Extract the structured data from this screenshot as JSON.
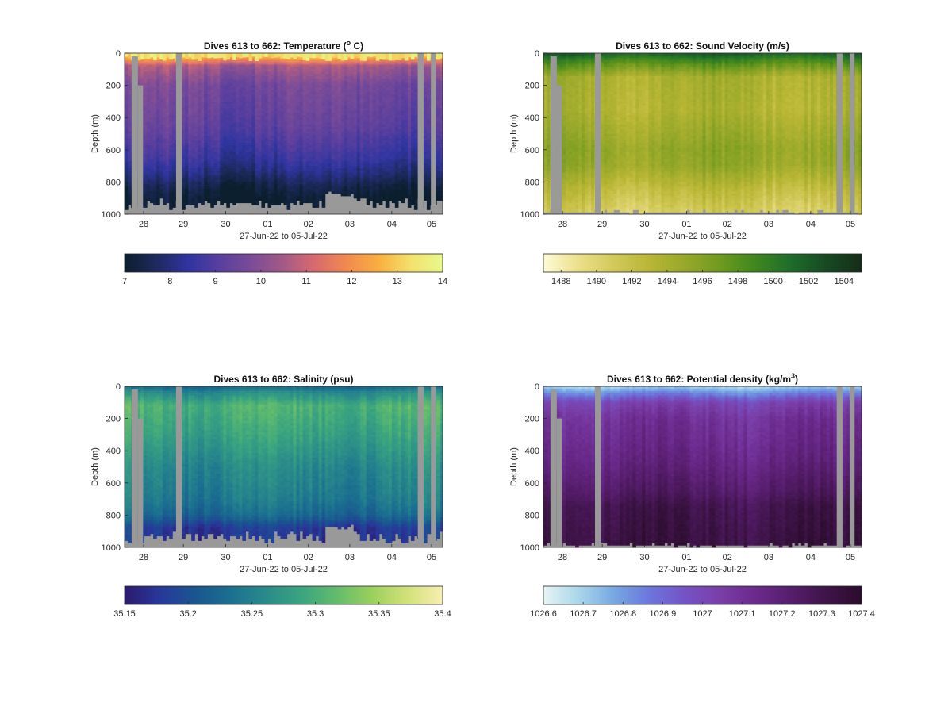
{
  "chart_data": [
    {
      "type": "heatmap",
      "title": "Dives 613 to 662: Temperature (",
      "title_sup": "o",
      "title_suffix": " C)",
      "ylabel": "Depth (m)",
      "xlabel": "27-Jun-22 to 05-Jul-22",
      "x_ticks": [
        "28",
        "29",
        "30",
        "01",
        "02",
        "03",
        "04",
        "05"
      ],
      "y_ticks": [
        "0",
        "200",
        "400",
        "600",
        "800",
        "1000"
      ],
      "ylim": [
        0,
        1000
      ],
      "y_reversed": true,
      "colorbar": {
        "ticks": [
          "7",
          "8",
          "9",
          "10",
          "11",
          "12",
          "13",
          "14"
        ],
        "range": [
          7,
          14
        ],
        "colors": [
          "#0b1f2e",
          "#1d2a5e",
          "#2f35a0",
          "#5a3f9e",
          "#7b4c98",
          "#a45a86",
          "#d86b6e",
          "#f18a4f",
          "#f9b03e",
          "#f3e16c",
          "#e8f98a"
        ]
      },
      "profile": [
        [
          0,
          0.92
        ],
        [
          30,
          0.78
        ],
        [
          80,
          0.5
        ],
        [
          200,
          0.38
        ],
        [
          450,
          0.32
        ],
        [
          650,
          0.22
        ],
        [
          750,
          0.14
        ],
        [
          830,
          0.05
        ],
        [
          900,
          0.0
        ],
        [
          1000,
          0.0
        ]
      ],
      "surface_band": true
    },
    {
      "type": "heatmap",
      "title": "Dives 613 to 662: Sound Velocity (m/s)",
      "ylabel": "Depth (m)",
      "xlabel": "27-Jun-22 to 05-Jul-22",
      "x_ticks": [
        "28",
        "29",
        "30",
        "01",
        "02",
        "03",
        "04",
        "05"
      ],
      "y_ticks": [
        "0",
        "200",
        "400",
        "600",
        "800",
        "1000"
      ],
      "ylim": [
        0,
        1000
      ],
      "y_reversed": true,
      "colorbar": {
        "ticks": [
          "1488",
          "1490",
          "1492",
          "1494",
          "1496",
          "1498",
          "1500",
          "1502",
          "1504"
        ],
        "range": [
          1487,
          1505
        ],
        "colors": [
          "#fdfbd6",
          "#ecdf8a",
          "#d2c95a",
          "#b9b634",
          "#97a82a",
          "#6f9a1e",
          "#3f871f",
          "#1e6c2c",
          "#184a22",
          "#152d18"
        ]
      },
      "profile": [
        [
          0,
          0.82
        ],
        [
          60,
          0.62
        ],
        [
          150,
          0.38
        ],
        [
          350,
          0.36
        ],
        [
          600,
          0.46
        ],
        [
          700,
          0.44
        ],
        [
          850,
          0.3
        ],
        [
          1000,
          0.2
        ]
      ],
      "surface_band": false
    },
    {
      "type": "heatmap",
      "title": "Dives 613 to 662: Salinity (psu)",
      "ylabel": "Depth (m)",
      "xlabel": "27-Jun-22 to 05-Jul-22",
      "x_ticks": [
        "28",
        "29",
        "30",
        "01",
        "02",
        "03",
        "04",
        "05"
      ],
      "y_ticks": [
        "0",
        "200",
        "400",
        "600",
        "800",
        "1000"
      ],
      "ylim": [
        0,
        1000
      ],
      "y_reversed": true,
      "colorbar": {
        "ticks": [
          "35.15",
          "35.2",
          "35.25",
          "35.3",
          "35.35",
          "35.4"
        ],
        "range": [
          35.15,
          35.4
        ],
        "colors": [
          "#2c1a6e",
          "#28389a",
          "#19568f",
          "#1b7090",
          "#2a8b8a",
          "#3aa480",
          "#62bc6c",
          "#9ad05c",
          "#d2e17a",
          "#f7efb0"
        ]
      },
      "profile": [
        [
          0,
          0.3
        ],
        [
          40,
          0.45
        ],
        [
          120,
          0.62
        ],
        [
          300,
          0.55
        ],
        [
          500,
          0.44
        ],
        [
          700,
          0.38
        ],
        [
          800,
          0.3
        ],
        [
          880,
          0.12
        ],
        [
          1000,
          0.1
        ]
      ],
      "surface_band": false
    },
    {
      "type": "heatmap",
      "title": "Dives 613 to 662: Potential density (kg/m",
      "title_sup": "3",
      "title_suffix": ")",
      "ylabel": "Depth (m)",
      "xlabel": "27-Jun-22 to 05-Jul-22",
      "x_ticks": [
        "28",
        "29",
        "30",
        "01",
        "02",
        "03",
        "04",
        "05"
      ],
      "y_ticks": [
        "0",
        "200",
        "400",
        "600",
        "800",
        "1000"
      ],
      "ylim": [
        0,
        1000
      ],
      "y_reversed": true,
      "colorbar": {
        "ticks": [
          "1026.6",
          "1026.7",
          "1026.8",
          "1026.9",
          "1027",
          "1027.1",
          "1027.2",
          "1027.3",
          "1027.4"
        ],
        "range": [
          1026.6,
          1027.4
        ],
        "colors": [
          "#e6f4f4",
          "#a9d6ea",
          "#76a8e2",
          "#6c76dc",
          "#7553c4",
          "#7a3ea8",
          "#6a2a8c",
          "#561d6c",
          "#3f1449",
          "#2a0c2c"
        ]
      },
      "profile": [
        [
          0,
          0.12
        ],
        [
          40,
          0.28
        ],
        [
          100,
          0.52
        ],
        [
          200,
          0.62
        ],
        [
          450,
          0.7
        ],
        [
          650,
          0.8
        ],
        [
          750,
          0.88
        ],
        [
          1000,
          0.92
        ]
      ],
      "surface_band": false
    }
  ]
}
